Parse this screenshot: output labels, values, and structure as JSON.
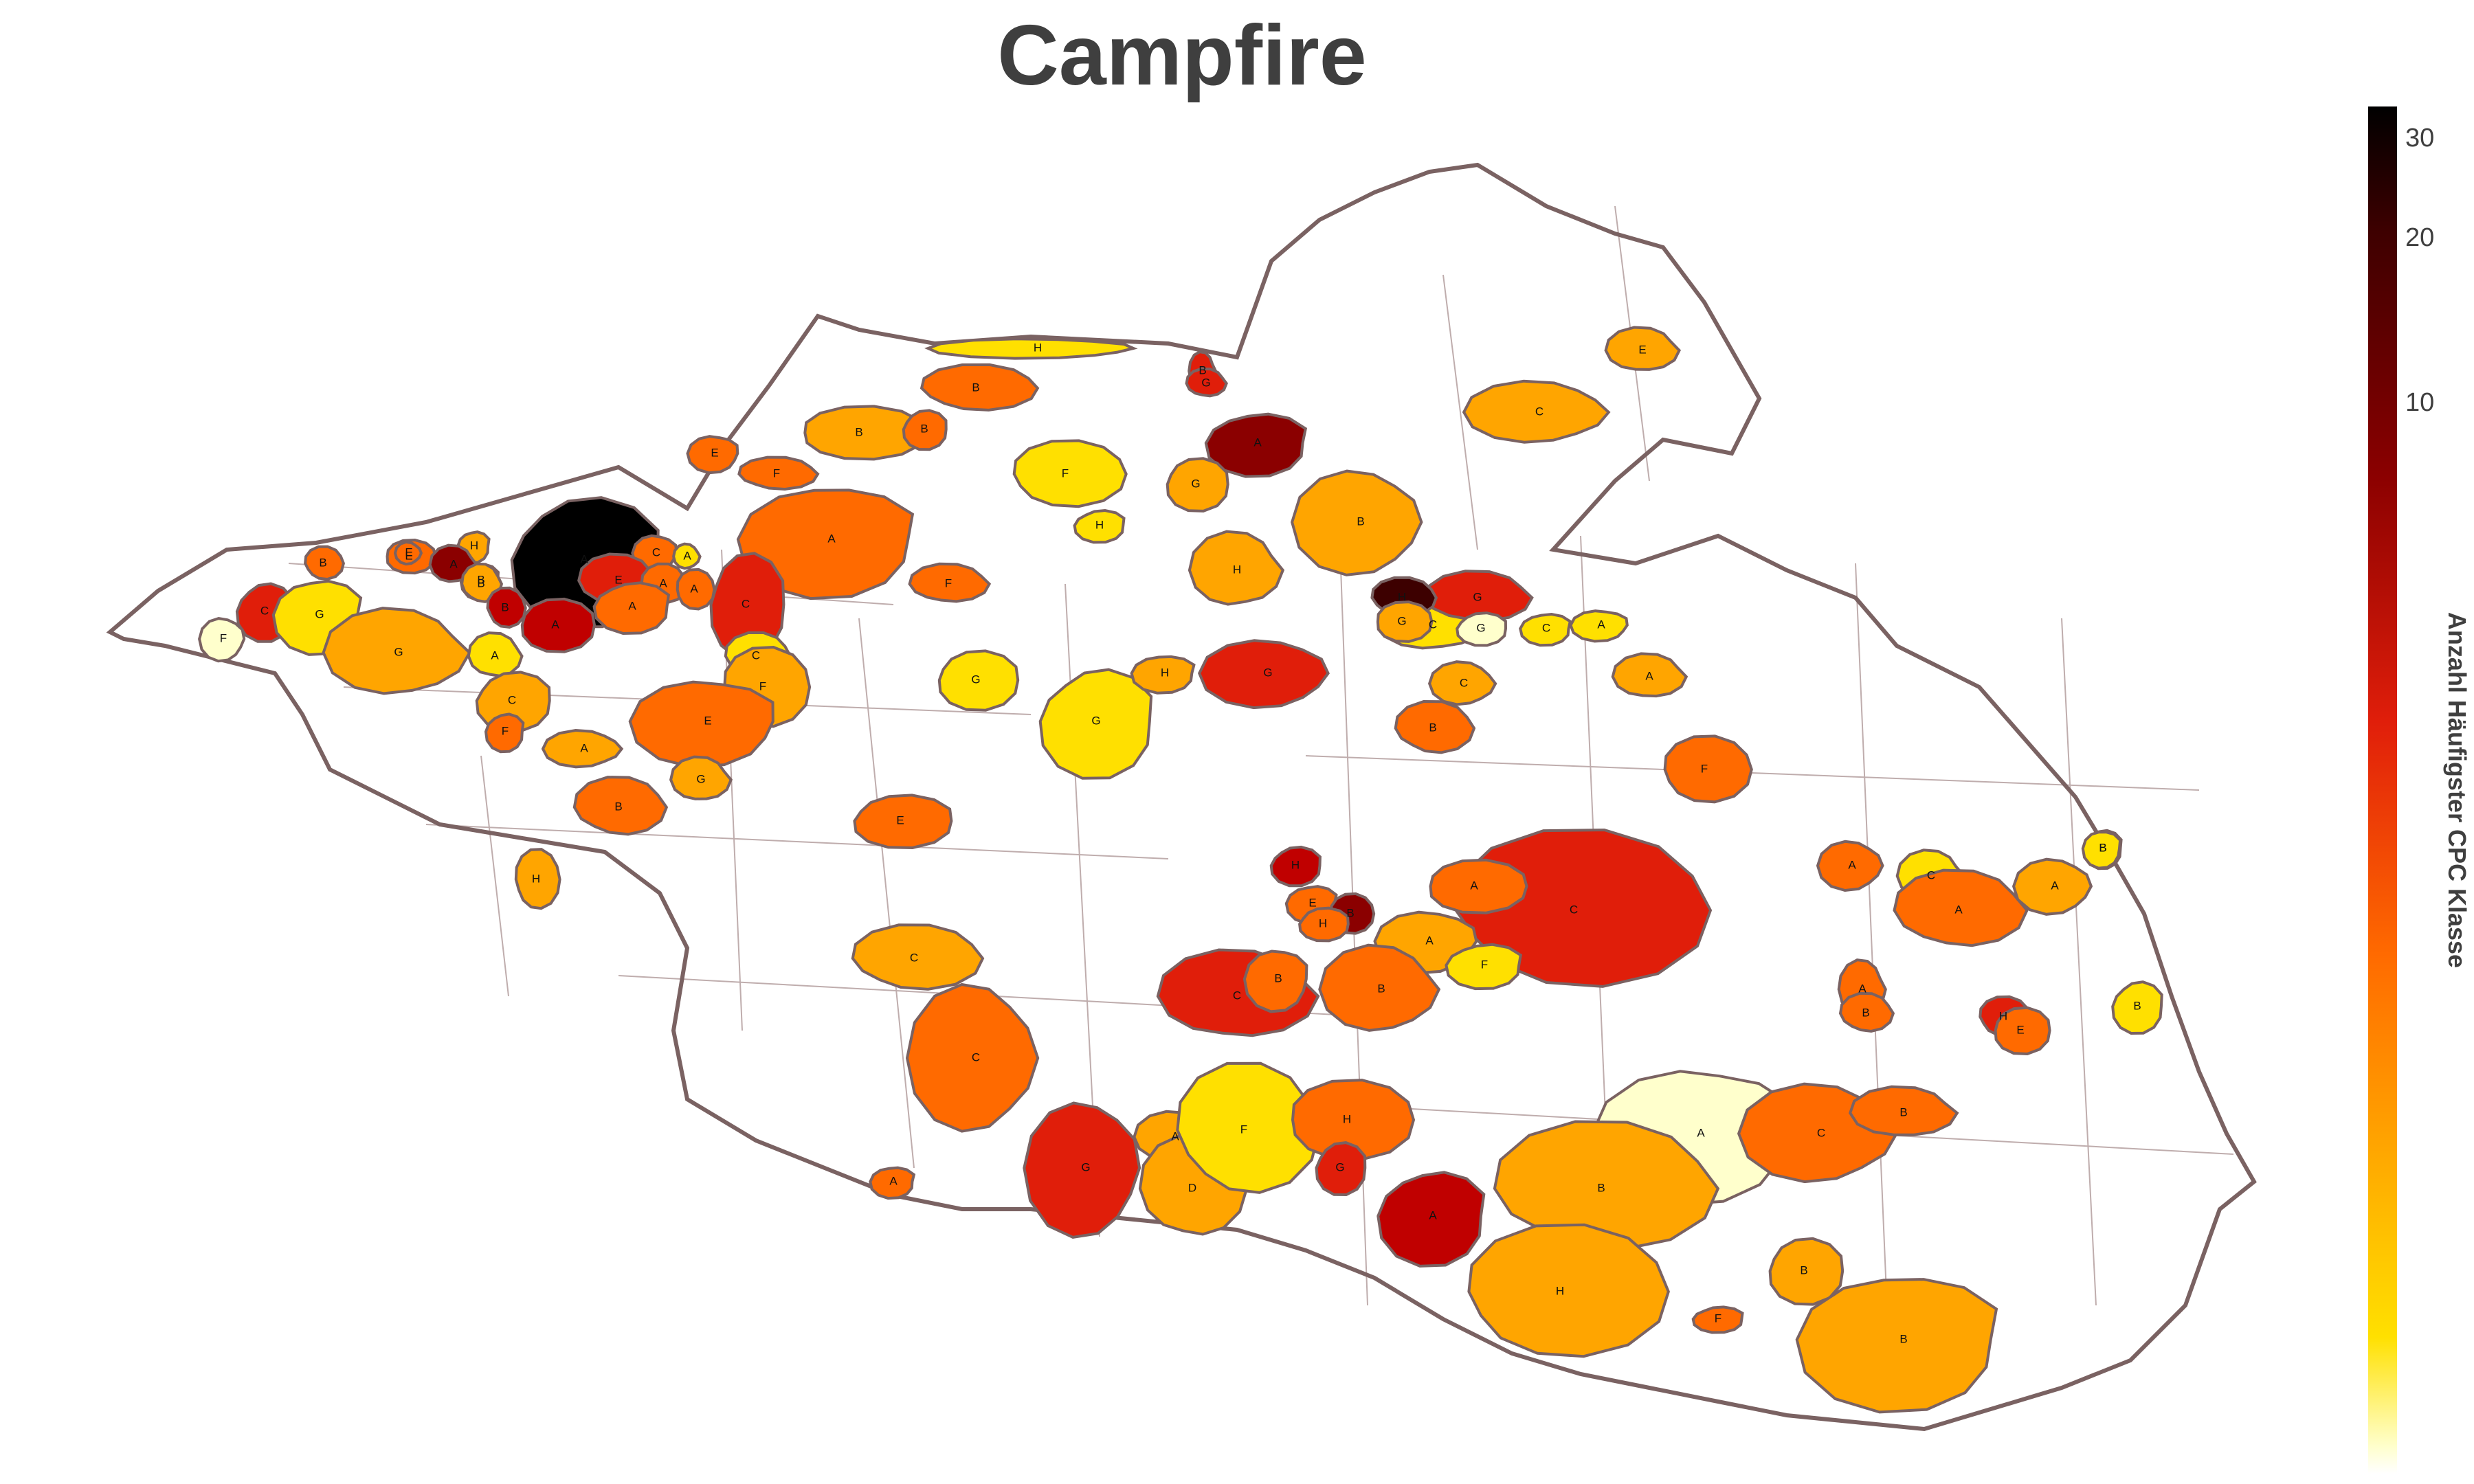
{
  "title": "Campfire",
  "colorbar": {
    "label": "Anzahl Häufigster CPC Klasse",
    "ticks": [
      "30",
      "20",
      "10"
    ]
  },
  "colors": {
    "outline": "#7a6262",
    "inner_border": "#8a6a6a",
    "scale": [
      "#ffffcc",
      "#ffe000",
      "#ffa500",
      "#ff6a00",
      "#e01e0a",
      "#c00000",
      "#8b0000",
      "#3d0000",
      "#000000"
    ]
  },
  "regions": [
    {
      "label": "H",
      "level": 1
    },
    {
      "label": "B",
      "level": 4
    },
    {
      "label": "G",
      "level": 4
    },
    {
      "label": "B",
      "level": 3
    },
    {
      "label": "B",
      "level": 2
    },
    {
      "label": "B",
      "level": 3
    },
    {
      "label": "A",
      "level": 6
    },
    {
      "label": "E",
      "level": 3
    },
    {
      "label": "C",
      "level": 2
    },
    {
      "label": "E",
      "level": 2
    },
    {
      "label": "F",
      "level": 3
    },
    {
      "label": "F",
      "level": 1
    },
    {
      "label": "G",
      "level": 2
    },
    {
      "label": "H",
      "level": 1
    },
    {
      "label": "A",
      "level": 3
    },
    {
      "label": "B",
      "level": 2
    },
    {
      "label": "H",
      "level": 2
    },
    {
      "label": "F",
      "level": 3
    },
    {
      "label": "B",
      "level": 3
    },
    {
      "label": "E",
      "level": 3
    },
    {
      "label": "A",
      "level": 8
    },
    {
      "label": "H",
      "level": 2
    },
    {
      "label": "C",
      "level": 3
    },
    {
      "label": "A",
      "level": 1
    },
    {
      "label": "E",
      "level": 4
    },
    {
      "label": "A",
      "level": 3
    },
    {
      "label": "A",
      "level": 3
    },
    {
      "label": "C",
      "level": 4
    },
    {
      "label": "A",
      "level": 3
    },
    {
      "label": "B",
      "level": 2
    },
    {
      "label": "E",
      "level": 3
    },
    {
      "label": "A",
      "level": 6
    },
    {
      "label": "B",
      "level": 2
    },
    {
      "label": "B",
      "level": 5
    },
    {
      "label": "A",
      "level": 5
    },
    {
      "label": "C",
      "level": 4
    },
    {
      "label": "G",
      "level": 1
    },
    {
      "label": "F",
      "level": 0
    },
    {
      "label": "G",
      "level": 2
    },
    {
      "label": "A",
      "level": 1
    },
    {
      "label": "C",
      "level": 1
    },
    {
      "label": "F",
      "level": 2
    },
    {
      "label": "C",
      "level": 2
    },
    {
      "label": "F",
      "level": 3
    },
    {
      "label": "E",
      "level": 3
    },
    {
      "label": "A",
      "level": 2
    },
    {
      "label": "G",
      "level": 2
    },
    {
      "label": "B",
      "level": 3
    },
    {
      "label": "H",
      "level": 2
    },
    {
      "label": "G",
      "level": 1
    },
    {
      "label": "G",
      "level": 1
    },
    {
      "label": "H",
      "level": 2
    },
    {
      "label": "G",
      "level": 4
    },
    {
      "label": "C",
      "level": 1
    },
    {
      "label": "G",
      "level": 4
    },
    {
      "label": "H",
      "level": 7
    },
    {
      "label": "G",
      "level": 2
    },
    {
      "label": "G",
      "level": 0
    },
    {
      "label": "C",
      "level": 1
    },
    {
      "label": "A",
      "level": 1
    },
    {
      "label": "C",
      "level": 2
    },
    {
      "label": "A",
      "level": 2
    },
    {
      "label": "B",
      "level": 3
    },
    {
      "label": "F",
      "level": 3
    },
    {
      "label": "E",
      "level": 3
    },
    {
      "label": "B",
      "level": 2
    },
    {
      "label": "B",
      "level": 1
    },
    {
      "label": "A",
      "level": 3
    },
    {
      "label": "C",
      "level": 1
    },
    {
      "label": "A",
      "level": 3
    },
    {
      "label": "C",
      "level": 4
    },
    {
      "label": "A",
      "level": 3
    },
    {
      "label": "H",
      "level": 5
    },
    {
      "label": "E",
      "level": 3
    },
    {
      "label": "A",
      "level": 2
    },
    {
      "label": "B",
      "level": 3
    },
    {
      "label": "C",
      "level": 4
    },
    {
      "label": "C",
      "level": 2
    },
    {
      "label": "B",
      "level": 6
    },
    {
      "label": "H",
      "level": 3
    },
    {
      "label": "F",
      "level": 1
    },
    {
      "label": "B",
      "level": 3
    },
    {
      "label": "C",
      "level": 3
    },
    {
      "label": "A",
      "level": 3
    },
    {
      "label": "B",
      "level": 3
    },
    {
      "label": "H",
      "level": 4
    },
    {
      "label": "E",
      "level": 3
    },
    {
      "label": "B",
      "level": 1
    },
    {
      "label": "A",
      "level": 3
    },
    {
      "label": "G",
      "level": 4
    },
    {
      "label": "A",
      "level": 2
    },
    {
      "label": "D",
      "level": 2
    },
    {
      "label": "F",
      "level": 1
    },
    {
      "label": "H",
      "level": 3
    },
    {
      "label": "G",
      "level": 4
    },
    {
      "label": "A",
      "level": 5
    },
    {
      "label": "A",
      "level": 0
    },
    {
      "label": "C",
      "level": 3
    },
    {
      "label": "B",
      "level": 3
    },
    {
      "label": "B",
      "level": 2
    },
    {
      "label": "H",
      "level": 2
    },
    {
      "label": "B",
      "level": 2
    },
    {
      "label": "F",
      "level": 3
    },
    {
      "label": "B",
      "level": 2
    },
    {
      "label": "A",
      "level": 2
    }
  ]
}
